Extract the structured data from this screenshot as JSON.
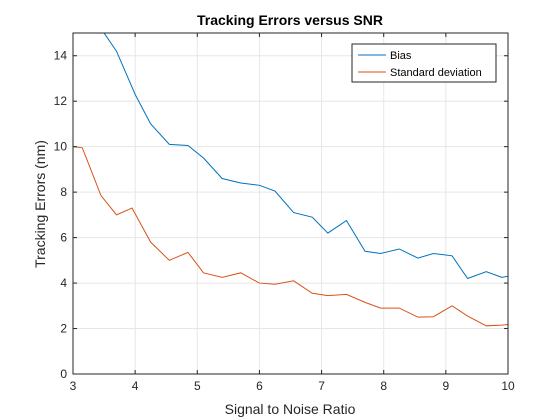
{
  "chart_data": {
    "type": "line",
    "title": "Tracking Errors versus SNR",
    "xlabel": "Signal to Noise Ratio",
    "ylabel": "Tracking Errors (nm)",
    "xlim": [
      3,
      10
    ],
    "ylim": [
      0,
      15
    ],
    "xticks": [
      3,
      4,
      5,
      6,
      7,
      8,
      9,
      10
    ],
    "yticks": [
      0,
      2,
      4,
      6,
      8,
      10,
      12,
      14
    ],
    "grid": true,
    "legend": "top-right",
    "series": [
      {
        "name": "Bias",
        "color": "#0072BD",
        "x": [
          3.4,
          3.7,
          4.0,
          4.25,
          4.55,
          4.85,
          5.1,
          5.4,
          5.7,
          6.0,
          6.25,
          6.55,
          6.85,
          7.1,
          7.4,
          7.7,
          7.95,
          8.25,
          8.55,
          8.8,
          9.1,
          9.35,
          9.65,
          9.9,
          10.0
        ],
        "y": [
          15.4,
          14.2,
          12.3,
          11.0,
          10.1,
          10.05,
          9.5,
          8.6,
          8.4,
          8.3,
          8.05,
          7.1,
          6.9,
          6.2,
          6.75,
          5.4,
          5.3,
          5.5,
          5.1,
          5.3,
          5.2,
          4.2,
          4.5,
          4.25,
          4.3
        ]
      },
      {
        "name": "Standard deviation",
        "color": "#D95319",
        "x": [
          3.0,
          3.15,
          3.45,
          3.7,
          3.95,
          4.25,
          4.55,
          4.85,
          5.1,
          5.4,
          5.7,
          6.0,
          6.25,
          6.55,
          6.85,
          7.1,
          7.4,
          7.7,
          7.95,
          8.25,
          8.55,
          8.8,
          9.1,
          9.35,
          9.65,
          9.9,
          10.0
        ],
        "y": [
          10.0,
          9.95,
          7.85,
          7.0,
          7.3,
          5.8,
          5.0,
          5.35,
          4.45,
          4.25,
          4.45,
          4.0,
          3.95,
          4.1,
          3.55,
          3.45,
          3.5,
          3.15,
          2.9,
          2.9,
          2.5,
          2.52,
          3.0,
          2.55,
          2.12,
          2.15,
          2.18
        ]
      }
    ]
  }
}
